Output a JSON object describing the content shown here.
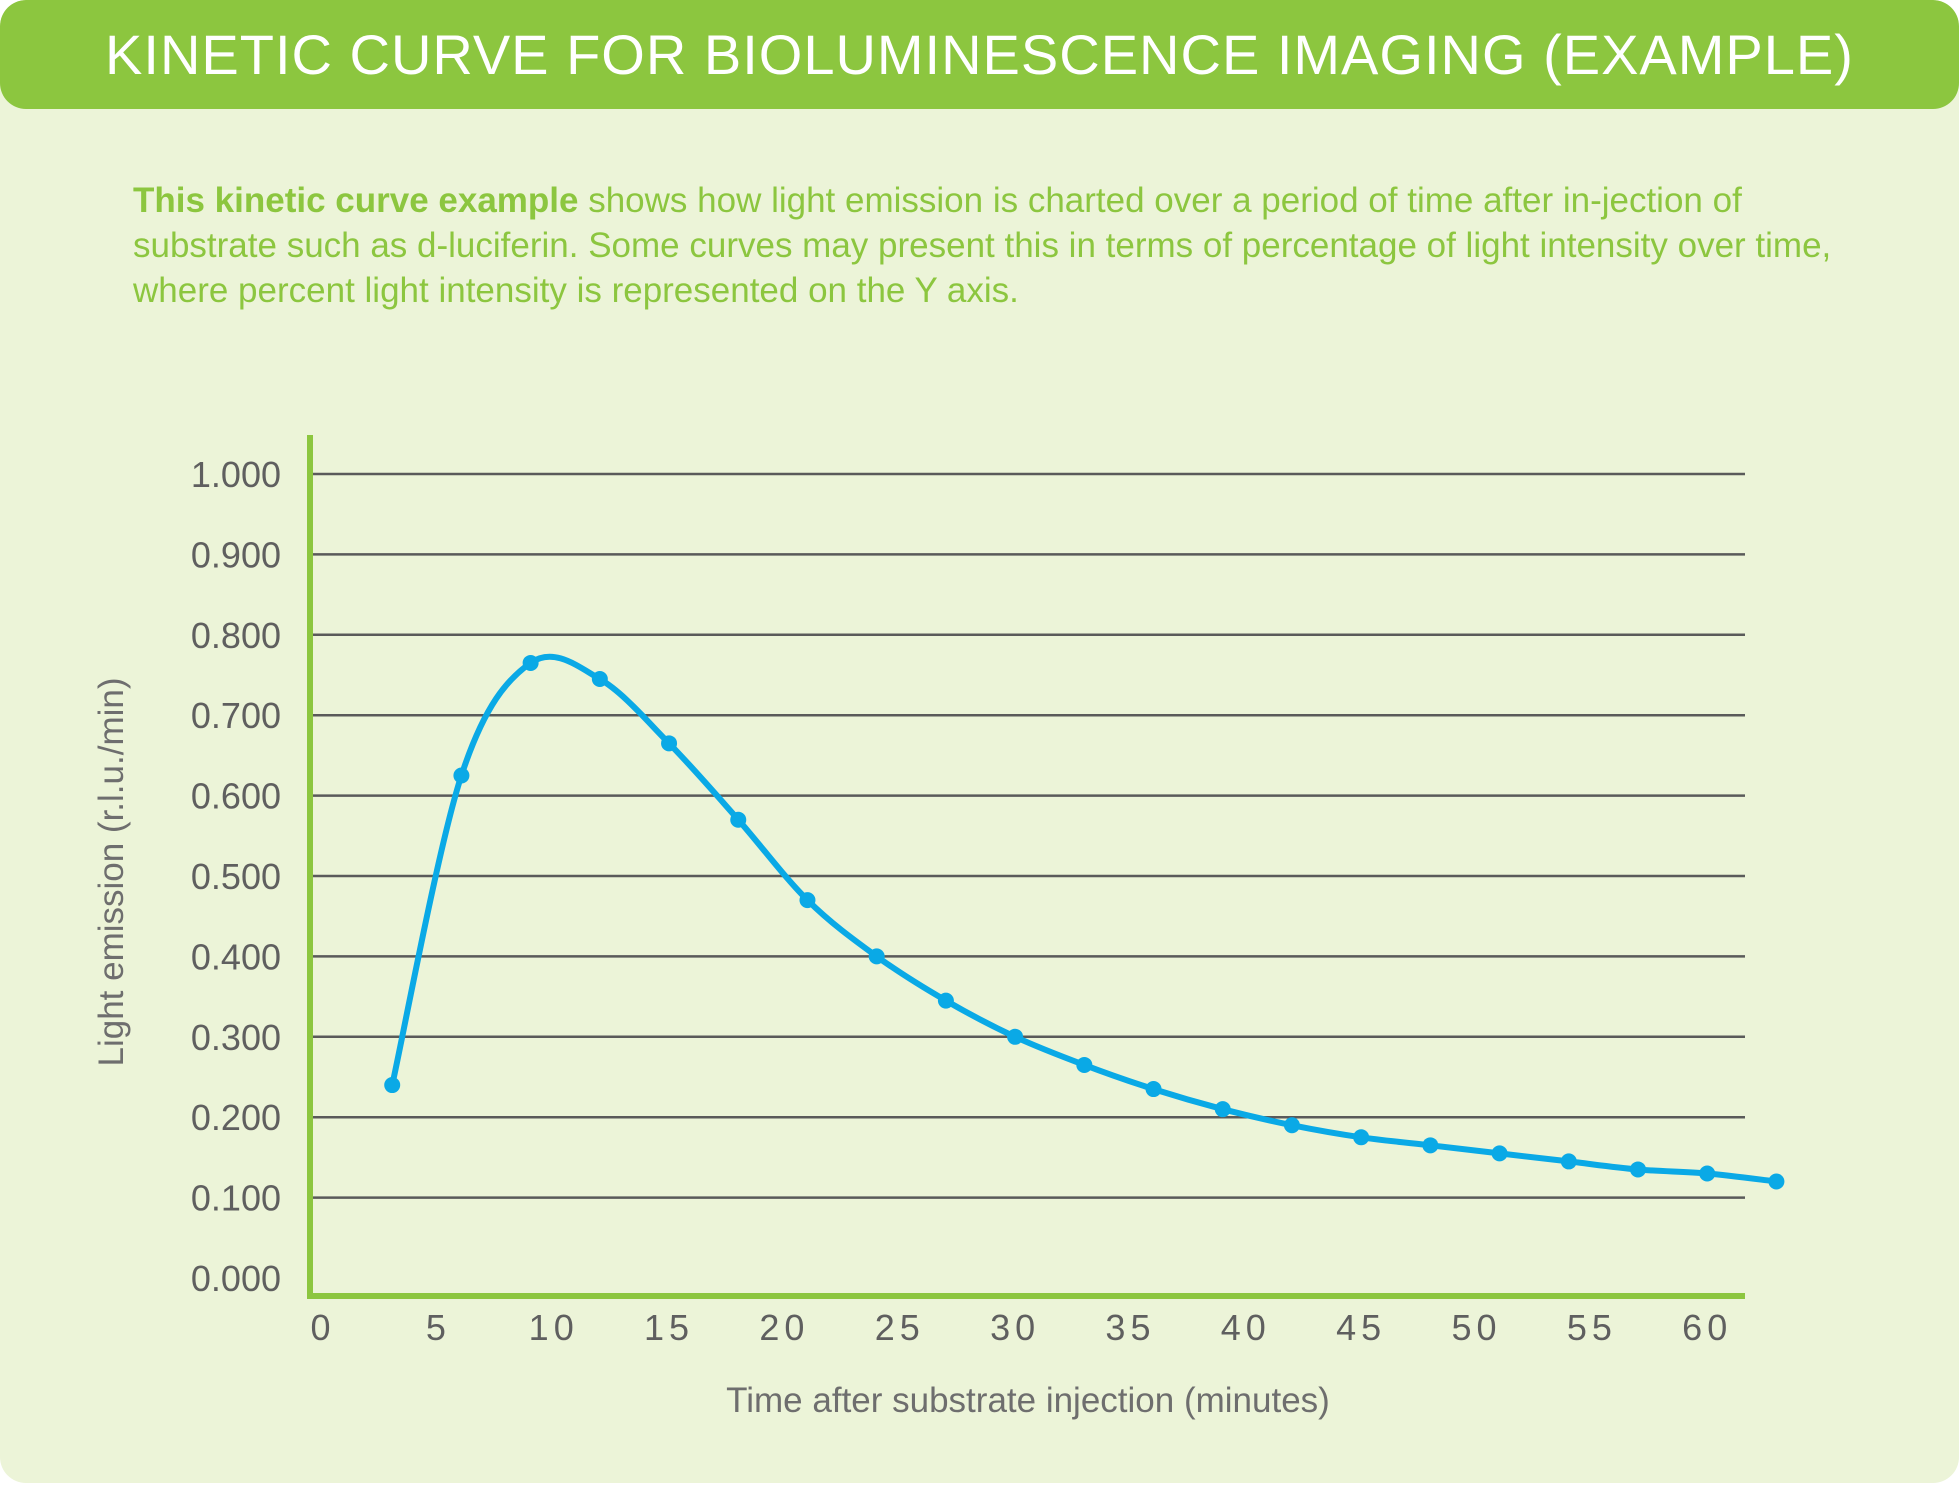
{
  "header": {
    "title": "KINETIC CURVE FOR BIOLUMINESCENCE IMAGING (EXAMPLE)"
  },
  "intro": {
    "lead": "This kinetic curve example",
    "text": " shows how light emission is charted over a period of time after in­-jection of substrate such as d-luciferin. Some curves may present this in terms of percentage of light intensity over time, where percent light intensity is represented on the Y axis."
  },
  "colors": {
    "header_bg": "#8cc63f",
    "panel_bg": "#ecf4d8",
    "axis": "#8cc63f",
    "grid": "#5a5a5a",
    "series": "#0aa9e6"
  },
  "chart_data": {
    "type": "line",
    "xlabel": "Time after substrate injection (minutes)",
    "ylabel": "Light emission (r.l.u./min)",
    "xlim": [
      0,
      63
    ],
    "ylim": [
      0,
      1.0
    ],
    "x_ticks": [
      0,
      5,
      10,
      15,
      20,
      25,
      30,
      35,
      40,
      45,
      50,
      55,
      60
    ],
    "x_tick_labels": [
      "0",
      "5",
      "10",
      "15",
      "20",
      "25",
      "30",
      "35",
      "40",
      "45",
      "50",
      "55",
      "60"
    ],
    "y_ticks": [
      0,
      0.1,
      0.2,
      0.3,
      0.4,
      0.5,
      0.6,
      0.7,
      0.8,
      0.9,
      1.0
    ],
    "y_tick_labels": [
      "0.000",
      "0.100",
      "0.200",
      "0.300",
      "0.400",
      "0.500",
      "0.600",
      "0.700",
      "0.800",
      "0.900",
      "1.000"
    ],
    "grid": true,
    "legend": "none",
    "series": [
      {
        "x": [
          3,
          6,
          9,
          12,
          15,
          18,
          21,
          24,
          27,
          30,
          33,
          36,
          39,
          42,
          45,
          48,
          51,
          54,
          57,
          60,
          63
        ],
        "y": [
          0.24,
          0.625,
          0.765,
          0.745,
          0.665,
          0.57,
          0.47,
          0.4,
          0.345,
          0.3,
          0.265,
          0.235,
          0.21,
          0.19,
          0.175,
          0.165,
          0.155,
          0.145,
          0.135,
          0.13,
          0.12
        ]
      }
    ]
  }
}
